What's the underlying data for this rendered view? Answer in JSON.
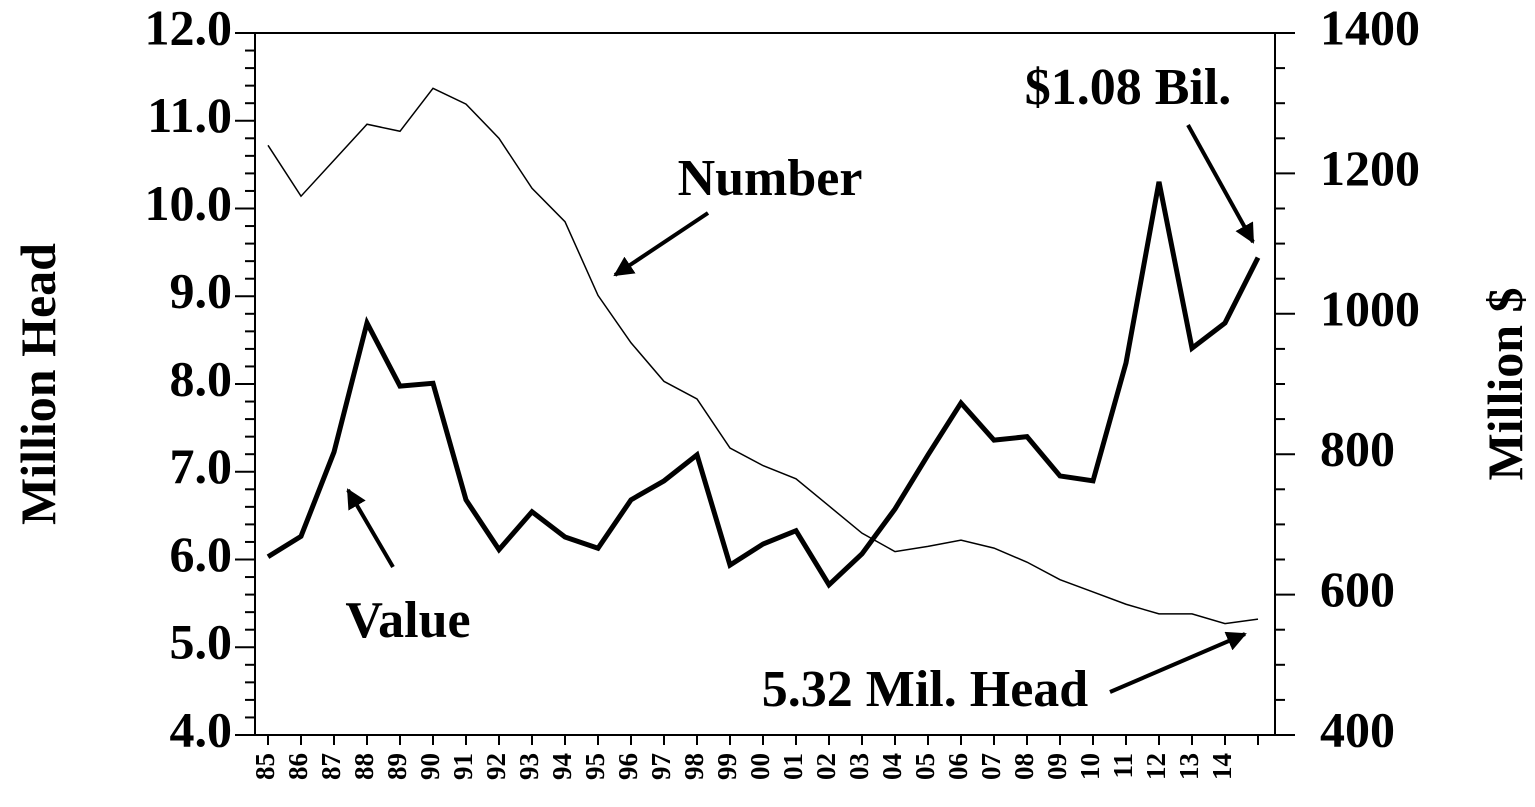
{
  "chart_data": {
    "type": "line",
    "categories": [
      "85",
      "86",
      "87",
      "88",
      "89",
      "90",
      "91",
      "92",
      "93",
      "94",
      "95",
      "96",
      "97",
      "98",
      "99",
      "00",
      "01",
      "02",
      "03",
      "04",
      "05",
      "06",
      "07",
      "08",
      "09",
      "10",
      "11",
      "12",
      "13",
      "14",
      null
    ],
    "ylabel": "Million Head",
    "y2label": "Million $",
    "ylim": [
      4,
      12
    ],
    "yticks": [
      {
        "value": 4,
        "label": "4.0"
      },
      {
        "value": 5,
        "label": "5.0"
      },
      {
        "value": 6,
        "label": "6.0"
      },
      {
        "value": 7,
        "label": "7.0"
      },
      {
        "value": 8,
        "label": "8.0"
      },
      {
        "value": 9,
        "label": "9.0"
      },
      {
        "value": 10,
        "label": "10.0"
      },
      {
        "value": 11,
        "label": "11.0"
      },
      {
        "value": 12,
        "label": "12.0"
      }
    ],
    "y2lim": [
      400,
      1400
    ],
    "y2ticks": [
      400,
      600,
      800,
      1000,
      1200,
      1400
    ],
    "series": [
      {
        "name": "Number",
        "color": "#000000",
        "line_width": 1.5,
        "values": [
          10.72,
          10.14,
          10.55,
          10.96,
          10.88,
          11.37,
          11.19,
          10.8,
          10.23,
          9.85,
          9.01,
          8.47,
          8.03,
          7.83,
          7.27,
          7.07,
          6.92,
          6.61,
          6.3,
          6.09,
          6.15,
          6.22,
          6.13,
          5.97,
          5.77,
          5.63,
          5.49,
          5.38,
          5.38,
          5.27,
          5.32
        ]
      },
      {
        "name": "Value",
        "color": "#000000",
        "line_width": 5,
        "axis": "y2",
        "values": [
          654,
          683,
          803,
          987,
          897,
          901,
          735,
          664,
          718,
          682,
          666,
          735,
          762,
          799,
          642,
          672,
          691,
          614,
          658,
          722,
          799,
          873,
          820,
          825,
          769,
          762,
          930,
          1188,
          951,
          987,
          1080
        ]
      }
    ],
    "annotations": [
      "$1.08 Bil.",
      "5.32 Mil. Head"
    ]
  }
}
